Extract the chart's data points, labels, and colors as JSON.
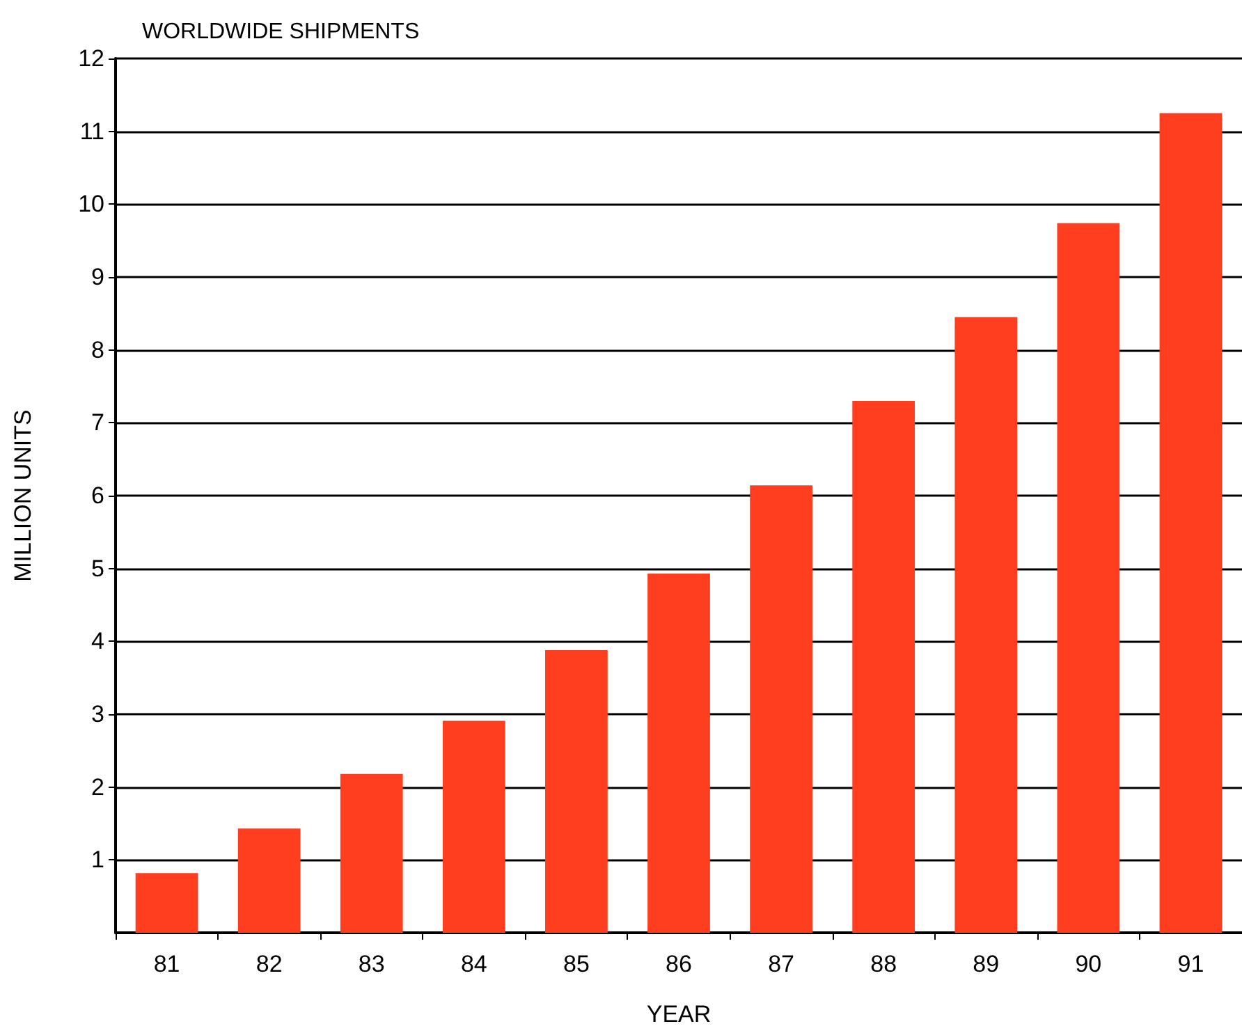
{
  "chart_data": {
    "type": "bar",
    "title": "WORLDWIDE SHIPMENTS",
    "xlabel": "YEAR",
    "ylabel": "MILLION UNITS",
    "categories": [
      "81",
      "82",
      "83",
      "84",
      "85",
      "86",
      "87",
      "88",
      "89",
      "90",
      "91"
    ],
    "values": [
      0.82,
      1.43,
      2.18,
      2.91,
      3.88,
      4.93,
      6.14,
      7.3,
      8.45,
      9.74,
      11.25
    ],
    "color": "#ff3d1f",
    "ylim": [
      0,
      12
    ],
    "yticks": [
      1,
      2,
      3,
      4,
      5,
      6,
      7,
      8,
      9,
      10,
      11,
      12
    ],
    "grid": "y"
  }
}
